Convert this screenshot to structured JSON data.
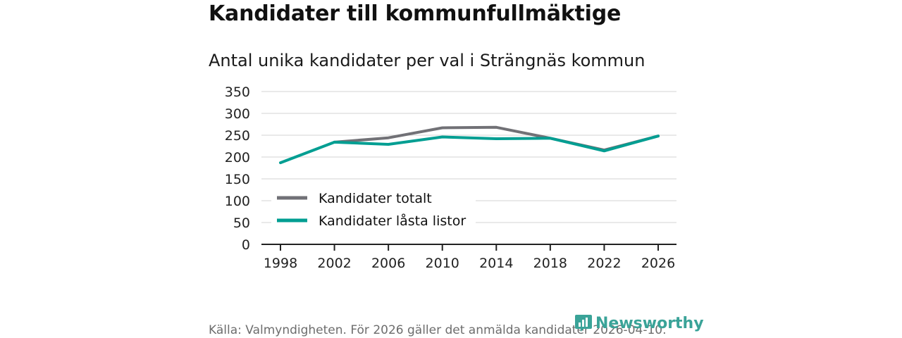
{
  "page": {
    "title": "Kandidater till kommunfullmäktige",
    "subtitle": "Antal unika kandidater per val i Strängnäs kommun",
    "footer": "Källa: Valmyndigheten. För 2026 gäller det anmälda kandidater 2026-04-10.",
    "brand": "Newsworthy"
  },
  "colors": {
    "series_total": "#717176",
    "series_locked": "#009e92",
    "grid": "#dcdcdc",
    "axis": "#222222",
    "brand": "#3aa398"
  },
  "icons": {
    "brand_logo": "newsworthy-logo-icon"
  },
  "chart_data": {
    "type": "line",
    "title": "Kandidater till kommunfullmäktige",
    "subtitle": "Antal unika kandidater per val i Strängnäs kommun",
    "xlabel": "",
    "ylabel": "",
    "categories": [
      "1998",
      "2002",
      "2006",
      "2010",
      "2014",
      "2018",
      "2022",
      "2026"
    ],
    "yticks": [
      0,
      50,
      100,
      150,
      200,
      250,
      300,
      350
    ],
    "ylim": [
      0,
      350
    ],
    "grid": true,
    "legend_position": "bottom-left",
    "series": [
      {
        "name": "Kandidater totalt",
        "color": "#717176",
        "values": [
          null,
          234,
          244,
          267,
          268,
          243,
          216,
          248
        ]
      },
      {
        "name": "Kandidater låsta listor",
        "color": "#009e92",
        "values": [
          187,
          234,
          229,
          246,
          242,
          243,
          214,
          248
        ]
      }
    ]
  }
}
